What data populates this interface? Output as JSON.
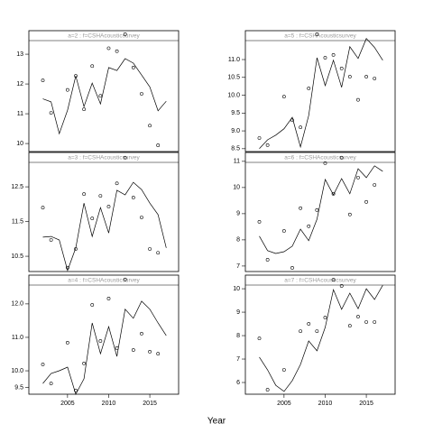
{
  "xlabel": "Year",
  "chart_data": [
    {
      "type": "scatter",
      "title": "a=2 : f=CSHAcousticsurvey",
      "x": [
        2002,
        2003,
        2004,
        2005,
        2006,
        2007,
        2008,
        2009,
        2010,
        2011,
        2012,
        2013,
        2014,
        2015,
        2016,
        2017
      ],
      "xlim": [
        2000.3,
        2018.5
      ],
      "ylim": [
        9.73,
        13.79
      ],
      "yticks": [
        10,
        11,
        12,
        13
      ],
      "series": [
        {
          "mode": "points",
          "values": [
            12.12,
            11.03,
            null,
            11.8,
            12.27,
            11.15,
            12.6,
            11.6,
            13.2,
            13.1,
            13.67,
            12.55,
            11.67,
            10.6,
            9.94,
            null
          ]
        },
        {
          "mode": "line",
          "values": [
            11.5,
            11.4,
            10.33,
            11.12,
            12.27,
            11.24,
            12.03,
            11.33,
            12.55,
            12.45,
            12.85,
            12.7,
            12.3,
            11.9,
            11.1,
            11.42
          ]
        }
      ]
    },
    {
      "type": "scatter",
      "title": "a=3 : f=CSHAcousticsurvey",
      "x": [
        2002,
        2003,
        2004,
        2005,
        2006,
        2007,
        2008,
        2009,
        2010,
        2011,
        2012,
        2013,
        2014,
        2015,
        2016,
        2017
      ],
      "xlim": [
        2000.3,
        2018.5
      ],
      "ylim": [
        10.06,
        13.49
      ],
      "yticks": [
        10.5,
        11.5,
        12.5
      ],
      "series": [
        {
          "mode": "points",
          "values": [
            11.9,
            10.97,
            null,
            10.17,
            10.71,
            12.29,
            11.59,
            12.24,
            11.93,
            12.6,
            13.34,
            12.19,
            11.62,
            10.71,
            10.6,
            null
          ]
        },
        {
          "mode": "line",
          "values": [
            11.05,
            11.07,
            10.97,
            10.09,
            10.74,
            12.03,
            11.07,
            11.9,
            11.17,
            12.4,
            12.27,
            12.63,
            12.42,
            12.03,
            11.7,
            10.74
          ]
        }
      ]
    },
    {
      "type": "scatter",
      "title": "a=4 : f=CSHAcousticsurvey",
      "x": [
        2002,
        2003,
        2004,
        2005,
        2006,
        2007,
        2008,
        2009,
        2010,
        2011,
        2012,
        2013,
        2014,
        2015,
        2016,
        2017
      ],
      "xlim": [
        2000.3,
        2018.5
      ],
      "ylim": [
        9.3,
        12.86
      ],
      "yticks": [
        9.5,
        {
          "value": 10,
          "label": "10.0"
        },
        {
          "value": 11,
          "label": "11.0"
        },
        {
          "value": 12,
          "label": "12.0"
        }
      ],
      "xticks": [
        2005,
        2010,
        2015
      ],
      "series": [
        {
          "mode": "points",
          "values": [
            10.19,
            9.62,
            null,
            10.84,
            9.41,
            10.22,
            11.97,
            10.89,
            12.16,
            10.68,
            12.73,
            10.62,
            11.11,
            10.57,
            10.51,
            null
          ]
        },
        {
          "mode": "line",
          "values": [
            9.62,
            9.92,
            10.0,
            10.11,
            9.3,
            9.76,
            11.43,
            10.51,
            11.32,
            10.43,
            11.84,
            11.57,
            12.08,
            11.84,
            11.43,
            11.05
          ]
        }
      ]
    },
    {
      "type": "scatter",
      "title": "a=5 : f=CSHAcousticsurvey",
      "x": [
        2002,
        2003,
        2004,
        2005,
        2006,
        2007,
        2008,
        2009,
        2010,
        2011,
        2012,
        2013,
        2014,
        2015,
        2016,
        2017
      ],
      "xlim": [
        2000.3,
        2018.5
      ],
      "ylim": [
        8.42,
        11.81
      ],
      "yticks": [
        8.5,
        {
          "value": 9,
          "label": "9.0"
        },
        9.5,
        {
          "value": 10,
          "label": "10.0"
        },
        10.5,
        {
          "value": 11,
          "label": "11.0"
        }
      ],
      "series": [
        {
          "mode": "points",
          "values": [
            8.8,
            8.6,
            null,
            9.96,
            9.3,
            9.1,
            10.19,
            11.71,
            11.05,
            11.13,
            10.75,
            10.52,
            9.87,
            10.52,
            10.47,
            null
          ]
        },
        {
          "mode": "line",
          "values": [
            8.5,
            8.75,
            8.88,
            9.06,
            9.38,
            8.55,
            9.43,
            11.05,
            10.27,
            10.98,
            10.22,
            11.36,
            11.03,
            11.59,
            11.34,
            10.98
          ]
        }
      ]
    },
    {
      "type": "scatter",
      "title": "a=6 : f=CSHAcousticsurvey",
      "x": [
        2002,
        2003,
        2004,
        2005,
        2006,
        2007,
        2008,
        2009,
        2010,
        2011,
        2012,
        2013,
        2014,
        2015,
        2016,
        2017
      ],
      "xlim": [
        2000.3,
        2018.5
      ],
      "ylim": [
        6.79,
        11.34
      ],
      "yticks": [
        7,
        8,
        9,
        10,
        11
      ],
      "series": [
        {
          "mode": "points",
          "values": [
            8.69,
            7.24,
            null,
            8.34,
            6.93,
            9.21,
            8.52,
            9.14,
            10.93,
            9.76,
            11.14,
            8.97,
            10.38,
            9.45,
            10.1,
            null
          ]
        },
        {
          "mode": "line",
          "values": [
            8.14,
            7.59,
            7.48,
            7.55,
            7.76,
            8.41,
            7.97,
            8.79,
            10.31,
            9.72,
            10.34,
            9.76,
            10.72,
            10.38,
            10.83,
            10.62
          ]
        }
      ]
    },
    {
      "type": "scatter",
      "title": "a=7 : f=CSHAcousticsurvey",
      "x": [
        2002,
        2003,
        2004,
        2005,
        2006,
        2007,
        2008,
        2009,
        2010,
        2011,
        2012,
        2013,
        2014,
        2015,
        2016,
        2017
      ],
      "xlim": [
        2000.3,
        2018.5
      ],
      "ylim": [
        5.5,
        10.58
      ],
      "yticks": [
        6,
        7,
        8,
        9,
        10
      ],
      "xticks": [
        2005,
        2010,
        2015
      ],
      "series": [
        {
          "mode": "points",
          "values": [
            7.88,
            5.69,
            null,
            6.54,
            null,
            8.19,
            8.5,
            8.19,
            8.77,
            10.38,
            10.12,
            8.42,
            8.81,
            8.58,
            8.58,
            null
          ]
        },
        {
          "mode": "line",
          "values": [
            7.08,
            6.54,
            5.88,
            5.62,
            6.08,
            6.77,
            7.77,
            7.35,
            8.35,
            9.96,
            9.12,
            9.81,
            9.15,
            10.0,
            9.54,
            10.15
          ]
        }
      ]
    }
  ]
}
